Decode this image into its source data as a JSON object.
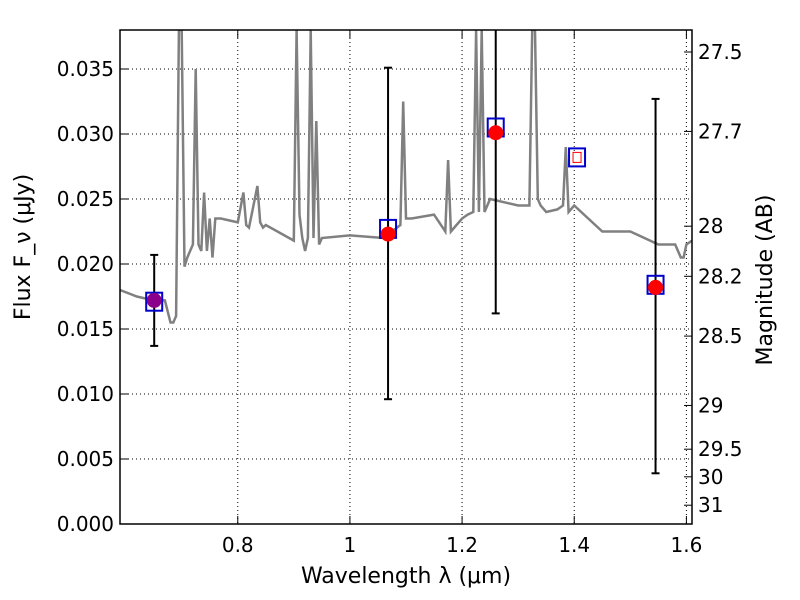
{
  "chart_data": {
    "type": "scatter",
    "xlabel": "Wavelength λ (μm)",
    "ylabel": "Flux F_ν (μJy)",
    "y2label": "Magnitude (AB)",
    "xlim": [
      0.59,
      1.61
    ],
    "ylim": [
      0.0,
      0.038
    ],
    "grid": true,
    "x_ticks": [
      "0.8",
      "1",
      "1.2",
      "1.4",
      "1.6"
    ],
    "y_ticks": [
      "0.000",
      "0.005",
      "0.010",
      "0.015",
      "0.020",
      "0.025",
      "0.030",
      "0.035"
    ],
    "y2_ticks": [
      "27.5",
      "27.7",
      "28",
      "28.2",
      "28.5",
      "29",
      "29.5",
      "30",
      "31"
    ],
    "colors": {
      "spectrum": "#808080",
      "observed": "#ff0000",
      "model_box": "#0000cc",
      "error_bar": "#000000",
      "upper_limit": "#8b008b"
    },
    "spectrum": {
      "name": "",
      "x": [
        0.59,
        0.62,
        0.65,
        0.67,
        0.68,
        0.685,
        0.69,
        0.695,
        0.7,
        0.705,
        0.71,
        0.72,
        0.725,
        0.73,
        0.735,
        0.74,
        0.745,
        0.75,
        0.755,
        0.76,
        0.77,
        0.8,
        0.81,
        0.815,
        0.82,
        0.835,
        0.84,
        0.845,
        0.85,
        0.9,
        0.905,
        0.91,
        0.915,
        0.92,
        0.925,
        0.93,
        0.935,
        0.94,
        0.945,
        0.95,
        1.0,
        1.06,
        1.09,
        1.095,
        1.1,
        1.11,
        1.15,
        1.17,
        1.175,
        1.18,
        1.2,
        1.21,
        1.22,
        1.225,
        1.23,
        1.235,
        1.24,
        1.25,
        1.3,
        1.32,
        1.325,
        1.33,
        1.335,
        1.34,
        1.35,
        1.37,
        1.38,
        1.385,
        1.39,
        1.4,
        1.45,
        1.5,
        1.55,
        1.58,
        1.59,
        1.595,
        1.6,
        1.61
      ],
      "y": [
        0.018,
        0.0175,
        0.0172,
        0.0172,
        0.0155,
        0.0155,
        0.016,
        0.038,
        0.038,
        0.0198,
        0.0205,
        0.0215,
        0.035,
        0.0215,
        0.021,
        0.0255,
        0.021,
        0.0235,
        0.0205,
        0.0235,
        0.0235,
        0.0232,
        0.0255,
        0.023,
        0.0228,
        0.026,
        0.0232,
        0.0228,
        0.023,
        0.0218,
        0.038,
        0.0238,
        0.022,
        0.021,
        0.022,
        0.038,
        0.022,
        0.031,
        0.0215,
        0.022,
        0.0222,
        0.022,
        0.023,
        0.0325,
        0.0235,
        0.0235,
        0.0238,
        0.0225,
        0.028,
        0.0225,
        0.0235,
        0.0238,
        0.024,
        0.038,
        0.024,
        0.038,
        0.024,
        0.025,
        0.0245,
        0.0245,
        0.038,
        0.038,
        0.025,
        0.0245,
        0.024,
        0.0242,
        0.0245,
        0.029,
        0.024,
        0.0245,
        0.0225,
        0.0225,
        0.0215,
        0.0215,
        0.0205,
        0.0205,
        0.0215,
        0.0218
      ]
    },
    "photometry": [
      {
        "x": 0.651,
        "observed": 0.0172,
        "model": 0.0171,
        "err_low": 0.0137,
        "err_high": 0.0207
      },
      {
        "x": 1.068,
        "observed": 0.0223,
        "model": 0.0227,
        "err_low": 0.0096,
        "err_high": 0.0351
      },
      {
        "x": 1.26,
        "observed": 0.0301,
        "model": 0.0305,
        "err_low": 0.0162,
        "err_high": 0.038
      },
      {
        "x": 1.405,
        "observed": null,
        "model": 0.0282,
        "err_low": null,
        "err_high": null
      },
      {
        "x": 1.545,
        "observed": 0.0182,
        "model": 0.0184,
        "err_low": 0.0039,
        "err_high": 0.0327
      }
    ]
  }
}
